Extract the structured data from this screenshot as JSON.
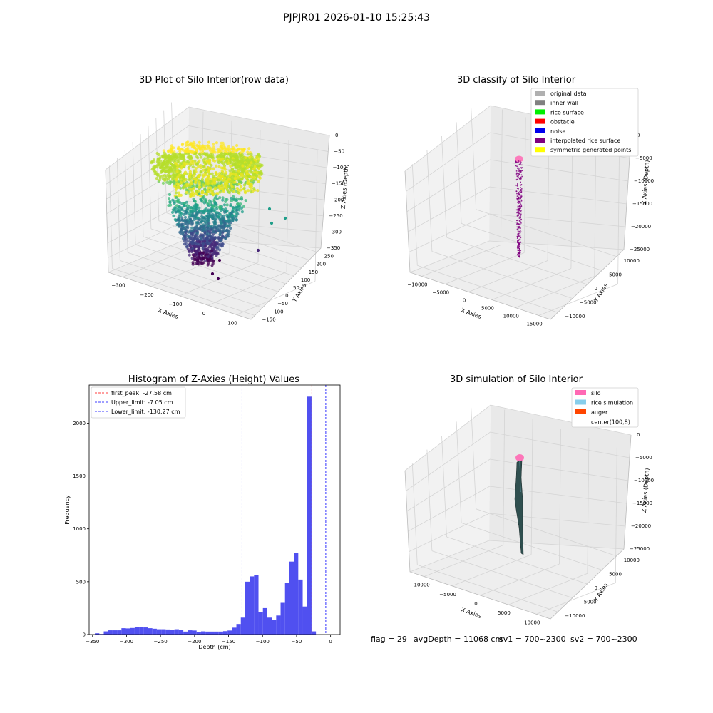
{
  "suptitle": "PJPJR01 2026-01-10 15:25:43",
  "footer": {
    "flag": "flag = 29",
    "avg": "avgDepth = 11068 cm",
    "sv1": "sv1 = 700~2300",
    "sv2": "sv2 = 700~2300"
  },
  "colors": {
    "hist_bar": "#5050f0",
    "peak_line": "#ff0000",
    "limit_line": "#0000ff",
    "pane": "#f2f2f2"
  },
  "chart_data": [
    {
      "id": "raw",
      "type": "scatter",
      "title": "3D Plot of Silo Interior(row data)",
      "xlabel": "X Axies",
      "ylabel": "Y Axies",
      "zlabel": "Z Axies (Depth)",
      "xticks": [
        "−300",
        "−200",
        "−100",
        "0",
        "100"
      ],
      "yticks": [
        "−150",
        "−100",
        "−50",
        "0",
        "50",
        "100",
        "150",
        "200",
        "250"
      ],
      "zticks": [
        "0",
        "−50",
        "−100",
        "−150",
        "−200",
        "−250",
        "−300",
        "−350"
      ],
      "colormap": "viridis",
      "zlim": [
        -350,
        0
      ]
    },
    {
      "id": "classify",
      "type": "scatter",
      "title": "3D classify of Silo Interior",
      "xlabel": "X Axies",
      "ylabel": "Y Axies",
      "zlabel": "Z Axies (Depth)",
      "xticks": [
        "−10000",
        "−5000",
        "0",
        "5000",
        "10000",
        "15000"
      ],
      "yticks": [
        "−10000",
        "−5000",
        "0",
        "5000",
        "10000"
      ],
      "zticks": [
        "0",
        "−5000",
        "−10000",
        "−15000",
        "−20000",
        "−25000"
      ],
      "legend_position": "top-right",
      "legend": [
        {
          "label": "original data",
          "color": "#b0b0b0"
        },
        {
          "label": "inner wall",
          "color": "#808080"
        },
        {
          "label": "rice surface",
          "color": "#00ee00"
        },
        {
          "label": "obstacle",
          "color": "#ff0000"
        },
        {
          "label": "noise",
          "color": "#0000ee"
        },
        {
          "label": "interpolated rice surface",
          "color": "#800080"
        },
        {
          "label": "symmetric generated points",
          "color": "#ffff00"
        }
      ]
    },
    {
      "id": "histogram",
      "type": "bar",
      "title": "Histogram of Z-Axies (Height) Values",
      "xlabel": "Depth (cm)",
      "ylabel": "Frequency",
      "xlim": [
        -355,
        14
      ],
      "ylim": [
        0,
        2360
      ],
      "xticks": [
        -350,
        -300,
        -250,
        -200,
        -150,
        -100,
        -50,
        0
      ],
      "xtick_labels": [
        "−350",
        "−300",
        "−250",
        "−200",
        "−150",
        "−100",
        "−50",
        "0"
      ],
      "yticks": [
        0,
        500,
        1000,
        1500,
        2000
      ],
      "bin_start": -346.5,
      "bin_width": 6.5,
      "values": [
        12,
        5,
        30,
        40,
        40,
        40,
        60,
        58,
        62,
        70,
        68,
        67,
        60,
        55,
        50,
        50,
        48,
        42,
        50,
        42,
        28,
        40,
        38,
        25,
        30,
        28,
        28,
        28,
        28,
        32,
        38,
        65,
        100,
        160,
        500,
        550,
        560,
        210,
        250,
        160,
        140,
        180,
        300,
        490,
        690,
        775,
        520,
        265,
        2250,
        30
      ],
      "lines": [
        {
          "label": "first_peak: -27.58 cm",
          "x": -27.58,
          "color": "#ff0000"
        },
        {
          "label": "Upper_limit: -7.05 cm",
          "x": -7.05,
          "color": "#0000ff"
        },
        {
          "label": "Lower_limit: -130.27 cm",
          "x": -130.27,
          "color": "#0000ff"
        }
      ],
      "legend_position": "top-left"
    },
    {
      "id": "simulation",
      "type": "area",
      "title": "3D simulation of Silo Interior",
      "xlabel": "X Axies",
      "ylabel": "Y Axies",
      "zlabel": "Z Axies (Depth)",
      "xticks": [
        "−10000",
        "−5000",
        "0",
        "5000",
        "10000"
      ],
      "yticks": [
        "−10000",
        "−5000",
        "0",
        "5000",
        "10000"
      ],
      "zticks": [
        "0",
        "−5000",
        "−10000",
        "−15000",
        "−20000",
        "−25000"
      ],
      "legend_position": "top-right",
      "legend": [
        {
          "label": "silo",
          "color": "#ff69b4"
        },
        {
          "label": "rice simulation",
          "color": "#87ceeb"
        },
        {
          "label": "auger",
          "color": "#ff4500"
        },
        {
          "label": "center(100,8)",
          "color": "#ffffff"
        }
      ]
    }
  ]
}
